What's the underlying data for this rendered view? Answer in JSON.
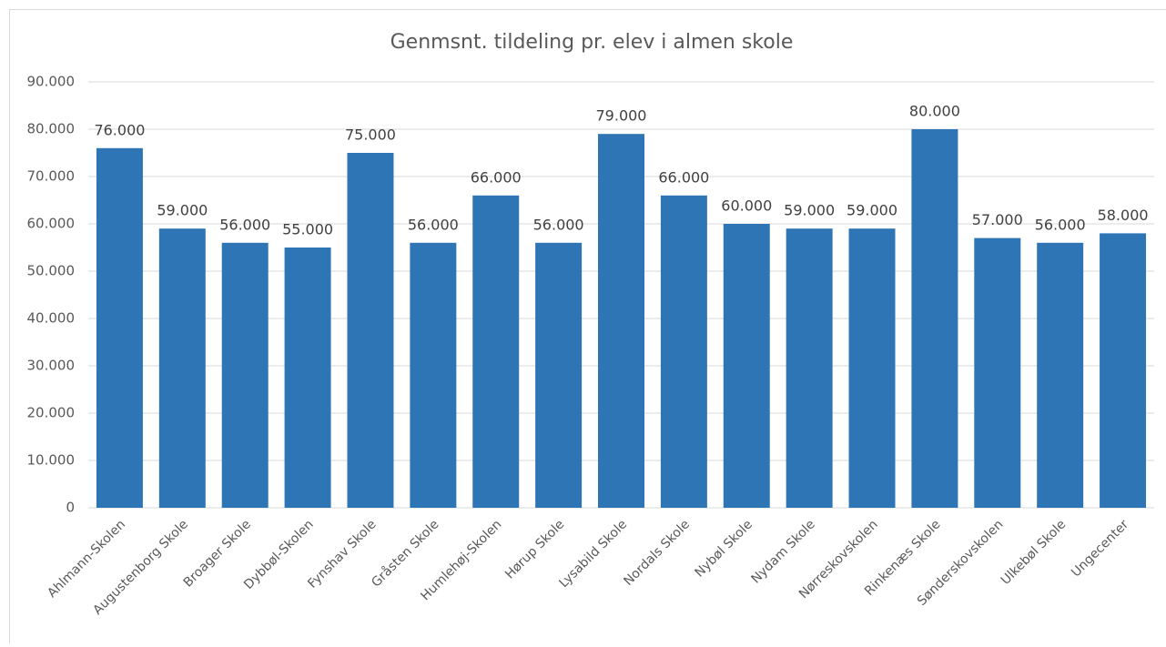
{
  "chart_data": {
    "type": "bar",
    "title": "Genmsnt. tildeling pr. elev i almen skole",
    "categories": [
      "Ahlmann-Skolen",
      "Augustenborg Skole",
      "Broager Skole",
      "Dybbøl-Skolen",
      "Fynshav Skole",
      "Gråsten Skole",
      "Humlehøj-Skolen",
      "Hørup Skole",
      "Lysabild Skole",
      "Nordals Skole",
      "Nybøl Skole",
      "Nydam Skole",
      "Nørreskovskolen",
      "Rinkenæs Skole",
      "Sønderskovskolen",
      "Ulkebøl Skole",
      "Ungecenter"
    ],
    "values": [
      76000,
      59000,
      56000,
      55000,
      75000,
      56000,
      66000,
      56000,
      79000,
      66000,
      60000,
      59000,
      59000,
      80000,
      57000,
      56000,
      58000
    ],
    "value_labels": [
      "76.000",
      "59.000",
      "56.000",
      "55.000",
      "75.000",
      "56.000",
      "66.000",
      "56.000",
      "79.000",
      "66.000",
      "60.000",
      "59.000",
      "59.000",
      "80.000",
      "57.000",
      "56.000",
      "58.000"
    ],
    "color": "#2e75b6",
    "ylim": [
      0,
      90000
    ],
    "yticks": [
      0,
      {
        "value": 10000,
        "label": "10.000"
      },
      {
        "value": 20000,
        "label": "20.000"
      },
      {
        "value": 30000,
        "label": "30.000"
      },
      {
        "value": 40000,
        "label": "40.000"
      },
      {
        "value": 50000,
        "label": "50.000"
      },
      {
        "value": 60000,
        "label": "60.000"
      },
      {
        "value": 70000,
        "label": "70.000"
      },
      {
        "value": 80000,
        "label": "80.000"
      },
      {
        "value": 90000,
        "label": "90.000"
      }
    ],
    "grid": true
  }
}
